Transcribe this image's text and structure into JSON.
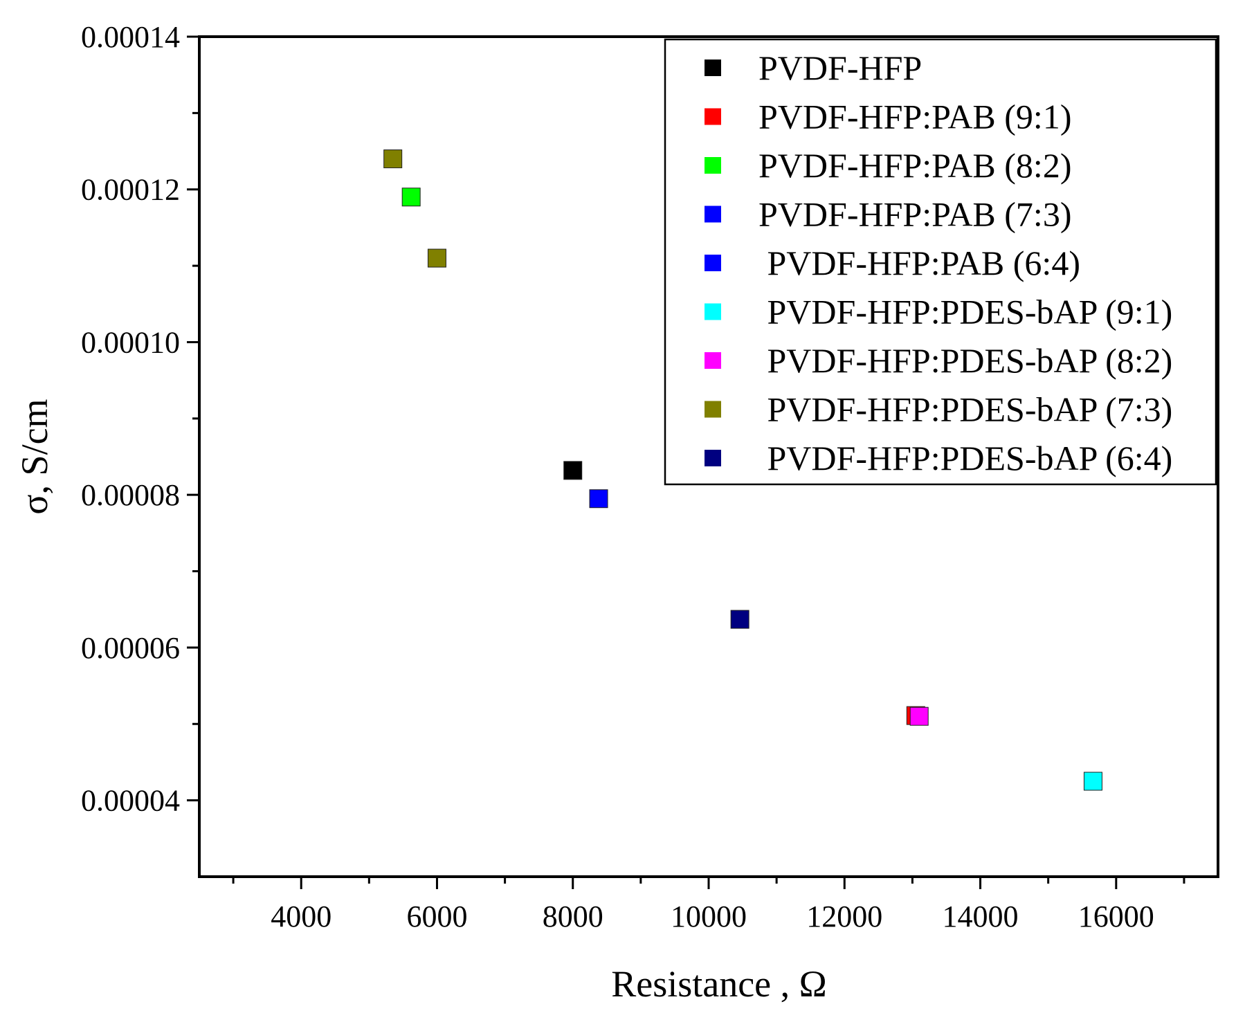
{
  "chart_data": {
    "type": "scatter",
    "title": "",
    "xlabel": "Resistance , Ω",
    "ylabel": "σ, S/cm",
    "xlim": [
      2500,
      17500
    ],
    "ylim": [
      3e-05,
      0.00014
    ],
    "x_ticks": [
      {
        "value": 4000,
        "label": "4000"
      },
      {
        "value": 6000,
        "label": "6000"
      },
      {
        "value": 8000,
        "label": "8000"
      },
      {
        "value": 10000,
        "label": "10000"
      },
      {
        "value": 12000,
        "label": "12000"
      },
      {
        "value": 14000,
        "label": "14000"
      },
      {
        "value": 16000,
        "label": "16000"
      }
    ],
    "x_minor_ticks": [
      3000,
      5000,
      7000,
      9000,
      11000,
      13000,
      15000,
      17000
    ],
    "y_ticks": [
      {
        "value": 4e-05,
        "label": "0.00004"
      },
      {
        "value": 6e-05,
        "label": "0.00006"
      },
      {
        "value": 8e-05,
        "label": "0.00008"
      },
      {
        "value": 0.0001,
        "label": "0.00010"
      },
      {
        "value": 0.00012,
        "label": "0.00012"
      },
      {
        "value": 0.00014,
        "label": "0.00014"
      }
    ],
    "y_minor_ticks": [
      5e-05,
      7e-05,
      9e-05,
      0.00011,
      0.00013
    ],
    "grid": false,
    "legend_position": "top-right",
    "series": [
      {
        "name": "PVDF-HFP",
        "color": "#000000",
        "points": [
          {
            "x": 8000,
            "y": 8.32e-05
          }
        ]
      },
      {
        "name": "PVDF-HFP:PAB (9:1)",
        "color": "#ff0000",
        "points": [
          {
            "x": 13050,
            "y": 5.11e-05
          }
        ]
      },
      {
        "name": "PVDF-HFP:PAB (8:2)",
        "color": "#00ff00",
        "points": [
          {
            "x": 5620,
            "y": 0.000119
          }
        ]
      },
      {
        "name": "PVDF-HFP:PAB (7:3)",
        "color": "#0000ff",
        "points": [
          {
            "x": 8380,
            "y": 7.95e-05
          }
        ]
      },
      {
        "name": " PVDF-HFP:PAB (6:4)",
        "color": "#0000ff",
        "points": []
      },
      {
        "name": " PVDF-HFP:PDES-bAP (9:1)",
        "color": "#00ffff",
        "points": [
          {
            "x": 15660,
            "y": 4.25e-05
          }
        ]
      },
      {
        "name": " PVDF-HFP:PDES-bAP (8:2)",
        "color": "#ff00ff",
        "points": [
          {
            "x": 13100,
            "y": 5.1e-05
          }
        ]
      },
      {
        "name": " PVDF-HFP:PDES-bAP (7:3)",
        "color": "#808000",
        "points": [
          {
            "x": 5350,
            "y": 0.000124
          },
          {
            "x": 6000,
            "y": 0.000111
          }
        ]
      },
      {
        "name": " PVDF-HFP:PDES-bAP (6:4)",
        "color": "#000080",
        "points": [
          {
            "x": 10460,
            "y": 6.37e-05
          }
        ]
      }
    ]
  }
}
